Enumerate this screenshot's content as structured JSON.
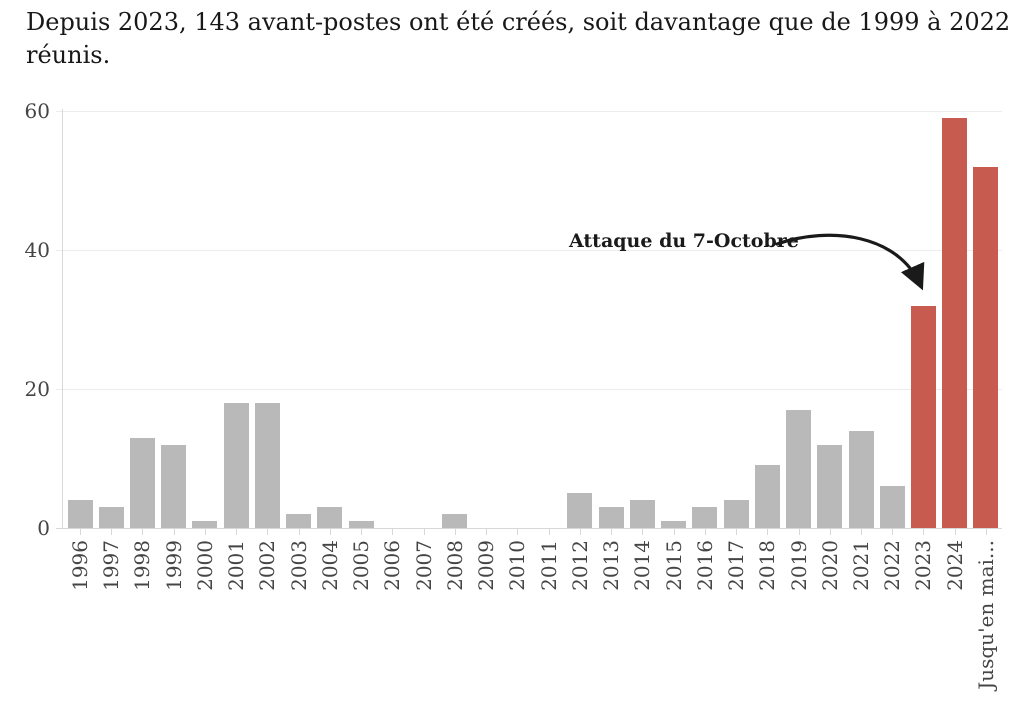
{
  "title": "Depuis 2023, 143 avant-postes ont été créés, soit davantage que de 1999 à 2022 réunis.",
  "annotation": {
    "label": "Attaque du 7-Octobre"
  },
  "colors": {
    "background": "#ffffff",
    "bar_default": "#b9b9b9",
    "bar_highlight": "#c75b50",
    "gridline": "#ececec",
    "axis": "#d8d8d8",
    "tick_label": "#454545",
    "title_text": "#181818",
    "annotation_text": "#1a1a1a",
    "arrow": "#1a1a1a"
  },
  "chart_data": {
    "type": "bar",
    "title": "Depuis 2023, 143 avant-postes ont été créés, soit davantage que de 1999 à 2022 réunis.",
    "categories": [
      "1996",
      "1997",
      "1998",
      "1999",
      "2000",
      "2001",
      "2002",
      "2003",
      "2004",
      "2005",
      "2006",
      "2007",
      "2008",
      "2009",
      "2010",
      "2011",
      "2012",
      "2013",
      "2014",
      "2015",
      "2016",
      "2017",
      "2018",
      "2019",
      "2020",
      "2021",
      "2022",
      "2023",
      "2024",
      "Jusqu'en mai..."
    ],
    "values": [
      4,
      3,
      13,
      12,
      1,
      18,
      18,
      2,
      3,
      1,
      0,
      0,
      2,
      0,
      0,
      0,
      5,
      3,
      4,
      1,
      3,
      4,
      9,
      17,
      12,
      14,
      6,
      32,
      59,
      52
    ],
    "highlighted_categories": [
      "2023",
      "2024",
      "Jusqu'en mai..."
    ],
    "highlight_total": 143,
    "yticks": [
      0,
      20,
      40,
      60
    ],
    "ylim": [
      0,
      60
    ],
    "xlabel": "",
    "ylabel": "",
    "grid": true,
    "legend": false,
    "x_label_rotation": -90,
    "annotations": [
      {
        "text": "Attaque du 7-Octobre",
        "target_category": "2023",
        "target_value": 32
      }
    ]
  }
}
